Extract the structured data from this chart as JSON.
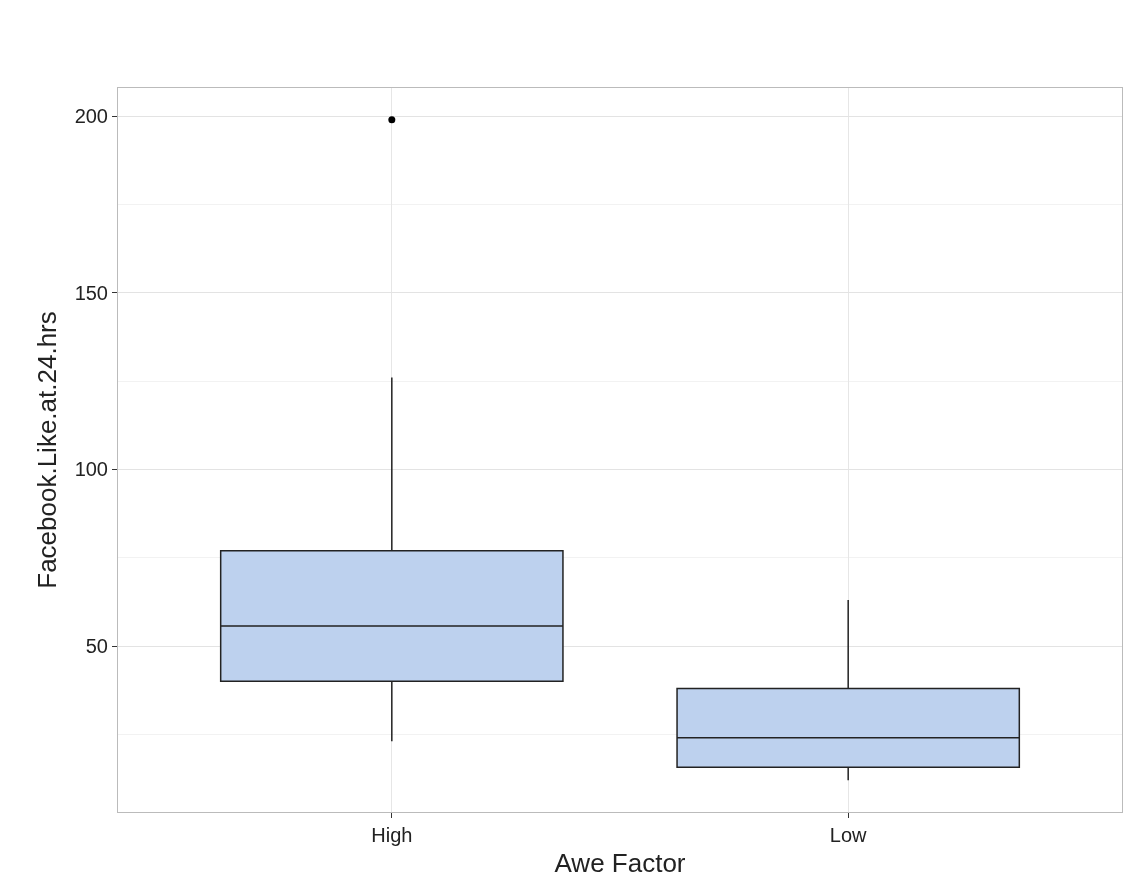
{
  "chart_data": {
    "type": "box",
    "xlabel": "Awe Factor",
    "ylabel": "Facebook.Like.at.24.hrs",
    "categories": [
      "High",
      "Low"
    ],
    "boxes": [
      {
        "low": 23,
        "q1": 40,
        "median": 55.7,
        "q3": 77,
        "high": 126,
        "outliers": [
          199
        ]
      },
      {
        "low": 12,
        "q1": 15.7,
        "median": 24,
        "q3": 38,
        "high": 63
      }
    ],
    "color": "#bdd1ee",
    "ylim": [
      3,
      208
    ],
    "yticks": [
      {
        "value": 25,
        "label": null
      },
      50,
      {
        "value": 75,
        "label": null
      },
      100,
      {
        "value": 125,
        "label": null
      },
      150,
      {
        "value": 175,
        "label": null
      },
      200
    ],
    "grid": true
  }
}
